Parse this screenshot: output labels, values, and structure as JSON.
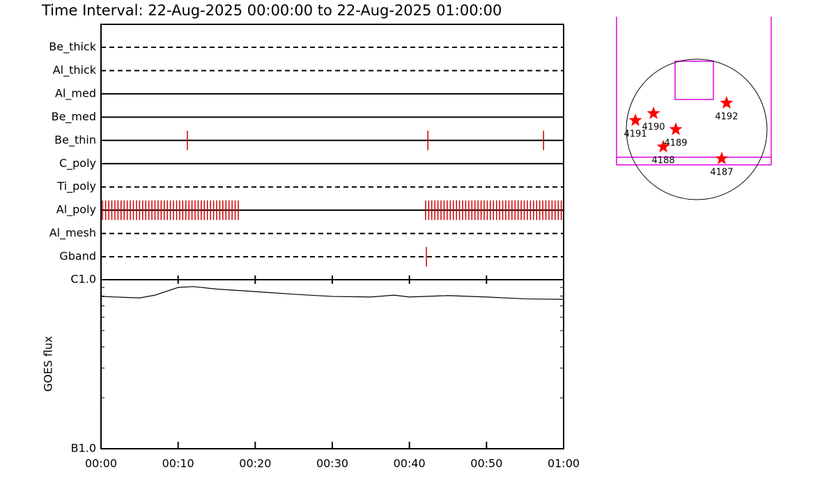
{
  "chart_data": [
    {
      "type": "timeline",
      "title": "Time Interval: 22-Aug-2025 00:00:00 to 22-Aug-2025 01:00:00",
      "categories": [
        "Be_thick",
        "Al_thick",
        "Al_med",
        "Be_med",
        "Be_thin",
        "C_poly",
        "Ti_poly",
        "Al_poly",
        "Al_mesh",
        "Gband"
      ],
      "styles": [
        "dashed",
        "dashed",
        "solid",
        "solid",
        "solid",
        "solid",
        "dashed",
        "solid",
        "dashed",
        "dashed"
      ],
      "events": [
        [],
        [],
        [],
        [],
        [
          11.2,
          42.4,
          57.4
        ],
        [],
        [],
        [
          0.2,
          0.6,
          1,
          1.4,
          1.8,
          2.2,
          2.6,
          3,
          3.4,
          3.8,
          4.2,
          4.6,
          5,
          5.4,
          5.8,
          6.2,
          6.6,
          7,
          7.4,
          7.8,
          8.2,
          8.6,
          9,
          9.4,
          9.8,
          10.2,
          10.6,
          11,
          11.4,
          11.8,
          12.2,
          12.6,
          13,
          13.4,
          13.8,
          14.2,
          14.6,
          15,
          15.4,
          15.8,
          16.2,
          16.6,
          17,
          17.4,
          17.8,
          42.1,
          42.5,
          42.9,
          43.3,
          43.7,
          44.1,
          44.5,
          44.9,
          45.3,
          45.7,
          46.1,
          46.5,
          46.9,
          47.3,
          47.7,
          48.1,
          48.5,
          48.9,
          49.3,
          49.7,
          50.1,
          50.5,
          50.9,
          51.3,
          51.7,
          52.1,
          52.5,
          52.9,
          53.3,
          53.7,
          54.1,
          54.5,
          54.9,
          55.3,
          55.7,
          56.1,
          56.5,
          56.9,
          57.3,
          57.7,
          58.1,
          58.5,
          58.9,
          59.3,
          59.7
        ],
        [],
        [
          42.2
        ]
      ],
      "event_color": "#cc0000",
      "xlim": [
        0,
        60
      ]
    },
    {
      "type": "line",
      "ylabel": "GOES flux",
      "x": [
        0,
        5,
        7,
        10,
        12,
        15,
        20,
        25,
        30,
        35,
        38,
        40,
        45,
        50,
        55,
        60
      ],
      "values": [
        7.96e-07,
        7.8e-07,
        8.1e-07,
        9e-07,
        9.1e-07,
        8.8e-07,
        8.5e-07,
        8.2e-07,
        7.96e-07,
        7.9e-07,
        8.1e-07,
        7.9e-07,
        8.05e-07,
        7.9e-07,
        7.7e-07,
        7.65e-07
      ],
      "color": "#000000",
      "log_scale": true,
      "xlim": [
        0,
        60
      ],
      "xticks": [
        {
          "value": 0,
          "label": "00:00"
        },
        {
          "value": 10,
          "label": "00:10"
        },
        {
          "value": 20,
          "label": "00:20"
        },
        {
          "value": 30,
          "label": "00:30"
        },
        {
          "value": 40,
          "label": "00:40"
        },
        {
          "value": 50,
          "label": "00:50"
        },
        {
          "value": 60,
          "label": "01:00"
        }
      ],
      "ylim": [
        1e-07,
        1e-06
      ],
      "yticks": [
        {
          "value": 1e-07,
          "label": "B1.0"
        },
        {
          "value": 1e-06,
          "label": "C1.0"
        }
      ],
      "yminorticks": [
        2e-07,
        3e-07,
        4e-07,
        5e-07,
        6e-07,
        7e-07,
        8e-07,
        9e-07
      ]
    },
    {
      "type": "map",
      "radius": 950,
      "x": [
        404,
        -583,
        -827,
        -282,
        -451,
        338
      ],
      "y": [
        357,
        216,
        122,
        0,
        -235,
        -395
      ],
      "labels": [
        "4192",
        "4190",
        "4191",
        "4189",
        "4188",
        "4187"
      ],
      "color": "#ff0000"
    }
  ]
}
